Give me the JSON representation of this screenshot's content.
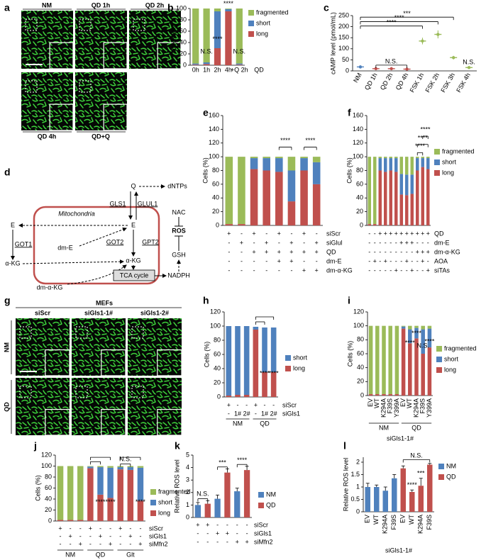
{
  "panel_labels": [
    "a",
    "b",
    "c",
    "d",
    "e",
    "f",
    "g",
    "h",
    "i",
    "j",
    "k",
    "l"
  ],
  "figure_a": {
    "images": [
      "NM",
      "QD 1h",
      "QD 2h",
      "QD 4h",
      "QD+Q"
    ]
  },
  "diagram_d": {
    "nodes": [
      "Q",
      "dNTPs",
      "GLS1",
      "GLUL1",
      "Mitochondria",
      "E",
      "E",
      "GOT1",
      "dm-E",
      "α-KG",
      "α-KG",
      "GOT2",
      "GPT2",
      "dm-α-KG",
      "TCA cycle",
      "NADPH",
      "GSH",
      "ROS",
      "NAC"
    ]
  },
  "figure_g": {
    "header": "MEFs",
    "columns": [
      "siScr",
      "siGls1-1#",
      "siGls1-2#"
    ],
    "rows": [
      "NM",
      "QD"
    ]
  },
  "chart_data": [
    {
      "type": "stacked_bar",
      "ylabel": "Cells (%)",
      "xlabel": "QD",
      "categories": [
        "0h",
        "1h",
        "2h",
        "4h",
        "+Q 2h"
      ],
      "ylim": [
        0,
        100
      ],
      "yticks": [
        0,
        20,
        40,
        60,
        80,
        100
      ],
      "series": [
        {
          "name": "fragmented",
          "color": "#9bbb59",
          "values": [
            97,
            95,
            5,
            1,
            97
          ]
        },
        {
          "name": "short",
          "color": "#4f81bd",
          "values": [
            2,
            3,
            65,
            4,
            2
          ]
        },
        {
          "name": "long",
          "color": "#c0504d",
          "values": [
            1,
            2,
            30,
            95,
            1
          ]
        }
      ],
      "annotations": [
        "N.S.",
        "****",
        "****",
        "N.S."
      ]
    },
    {
      "type": "dot",
      "ylabel": "cAMP level (pmol/mL)",
      "categories": [
        "NM",
        "QD 1h",
        "QD 2h",
        "QD 4h",
        "FSK 1h",
        "FSK 2h",
        "FSK 3h",
        "FSK 4h"
      ],
      "values": [
        18,
        10,
        10,
        8,
        135,
        165,
        60,
        15
      ],
      "errors": [
        3,
        2,
        2,
        2,
        15,
        18,
        8,
        3
      ],
      "colors": [
        "#4f81bd",
        "#c0504d",
        "#c0504d",
        "#c0504d",
        "#9bbb59",
        "#9bbb59",
        "#9bbb59",
        "#9bbb59"
      ],
      "ylim": [
        0,
        250
      ],
      "yticks": [
        0,
        50,
        100,
        150,
        200,
        250
      ],
      "annotations": [
        "***",
        "****",
        "****",
        "N.S.",
        "N.S."
      ]
    },
    {
      "type": "stacked_bar",
      "ylabel": "Cells (%)",
      "ylim": [
        0,
        160
      ],
      "yticks": [
        0,
        20,
        40,
        60,
        80,
        100,
        120,
        140,
        160
      ],
      "series": [
        {
          "name": "fragmented",
          "color": "#9bbb59",
          "values": [
            98,
            98,
            2,
            2,
            2,
            20,
            2,
            8
          ]
        },
        {
          "name": "short",
          "color": "#4f81bd",
          "values": [
            0,
            0,
            16,
            18,
            20,
            45,
            18,
            32
          ]
        },
        {
          "name": "long",
          "color": "#c0504d",
          "values": [
            2,
            2,
            82,
            80,
            78,
            35,
            80,
            60
          ]
        }
      ],
      "conditions": [
        {
          "name": "siScr",
          "values": [
            "+",
            "-",
            "+",
            "-",
            "+",
            "-",
            "+",
            "-"
          ]
        },
        {
          "name": "siGlul",
          "values": [
            "-",
            "+",
            "-",
            "+",
            "-",
            "+",
            "-",
            "+"
          ]
        },
        {
          "name": "QD",
          "values": [
            "-",
            "-",
            "+",
            "+",
            "+",
            "+",
            "+",
            "+"
          ]
        },
        {
          "name": "dm-E",
          "values": [
            "-",
            "-",
            "-",
            "-",
            "+",
            "+",
            "-",
            "-"
          ]
        },
        {
          "name": "dm-α-KG",
          "values": [
            "-",
            "-",
            "-",
            "-",
            "-",
            "-",
            "+",
            "+"
          ]
        }
      ],
      "annotations": [
        "****",
        "****"
      ]
    },
    {
      "type": "stacked_bar",
      "ylabel": "Cells (%)",
      "ylim": [
        0,
        160
      ],
      "yticks": [
        0,
        20,
        40,
        60,
        80,
        100,
        120,
        140,
        160
      ],
      "series": [
        {
          "name": "fragmented",
          "color": "#9bbb59",
          "values": [
            98,
            98,
            2,
            2,
            2,
            2,
            25,
            26,
            26,
            2,
            2,
            2
          ]
        },
        {
          "name": "short",
          "color": "#4f81bd",
          "values": [
            0,
            0,
            18,
            20,
            18,
            20,
            30,
            30,
            28,
            18,
            13,
            16
          ]
        },
        {
          "name": "long",
          "color": "#c0504d",
          "values": [
            2,
            2,
            80,
            78,
            80,
            78,
            45,
            44,
            46,
            80,
            85,
            82
          ]
        }
      ],
      "conditions": [
        {
          "name": "QD",
          "values": [
            "-",
            "-",
            "+",
            "+",
            "+",
            "+",
            "+",
            "+",
            "+",
            "+",
            "+",
            "+"
          ]
        },
        {
          "name": "dm-E",
          "values": [
            "-",
            "-",
            "-",
            "-",
            "-",
            "-",
            "+",
            "+",
            "+",
            "-",
            "-",
            "-"
          ]
        },
        {
          "name": "dm-α-KG",
          "values": [
            "-",
            "-",
            "-",
            "-",
            "-",
            "-",
            "-",
            "-",
            "-",
            "+",
            "+",
            "+"
          ]
        },
        {
          "name": "AOA",
          "values": [
            "-",
            "+",
            "-",
            "+",
            "-",
            "-",
            "-",
            "+",
            "-",
            "-",
            "+",
            "-"
          ]
        },
        {
          "name": "siTAs",
          "values": [
            "-",
            "-",
            "-",
            "-",
            "-",
            "+",
            "-",
            "-",
            "+",
            "-",
            "-",
            "+"
          ]
        }
      ],
      "annotations": [
        "****",
        "****",
        "****"
      ]
    },
    {
      "type": "stacked_bar",
      "ylabel": "Cells (%)",
      "ylim": [
        0,
        120
      ],
      "yticks": [
        0,
        20,
        40,
        60,
        80,
        100,
        120
      ],
      "series": [
        {
          "name": "short",
          "color": "#4f81bd",
          "values": [
            98,
            97,
            97,
            4,
            63,
            63
          ]
        },
        {
          "name": "long",
          "color": "#c0504d",
          "values": [
            2,
            3,
            3,
            95,
            35,
            35
          ]
        }
      ],
      "conditions": [
        {
          "name": "siScr",
          "values": [
            "+",
            "-",
            "-",
            "+",
            "-",
            "-"
          ]
        },
        {
          "name": "siGls1",
          "values": [
            "-",
            "1#",
            "2#",
            "-",
            "1#",
            "2#"
          ]
        }
      ],
      "groups": [
        "NM",
        "QD"
      ],
      "annotations": [
        "****",
        "****"
      ]
    },
    {
      "type": "stacked_bar",
      "ylabel": "Cells (%)",
      "xlabel": "siGls1-1#",
      "categories": [
        "EV",
        "WT",
        "K294A",
        "F39S",
        "Y399A",
        "EV",
        "WT",
        "K294A",
        "F39S",
        "Y399A"
      ],
      "ylim": [
        0,
        120
      ],
      "yticks": [
        0,
        20,
        40,
        60,
        80,
        100,
        120
      ],
      "series": [
        {
          "name": "fragmented",
          "color": "#9bbb59",
          "values": [
            98,
            98,
            98,
            98,
            98,
            1,
            5,
            3,
            5,
            4
          ]
        },
        {
          "name": "short",
          "color": "#4f81bd",
          "values": [
            0,
            0,
            0,
            0,
            0,
            3,
            20,
            15,
            35,
            27
          ]
        },
        {
          "name": "long",
          "color": "#c0504d",
          "values": [
            2,
            2,
            2,
            2,
            2,
            96,
            75,
            82,
            60,
            69
          ]
        }
      ],
      "groups": [
        "NM",
        "QD"
      ],
      "annotations": [
        "****",
        "****",
        "N.S.",
        "****"
      ]
    },
    {
      "type": "stacked_bar",
      "ylabel": "Cells (%)",
      "ylim": [
        0,
        120
      ],
      "yticks": [
        0,
        20,
        40,
        60,
        80,
        100,
        120
      ],
      "series": [
        {
          "name": "fragmented",
          "color": "#9bbb59",
          "values": [
            98,
            98,
            98,
            1,
            2,
            3,
            2,
            2,
            3
          ]
        },
        {
          "name": "short",
          "color": "#4f81bd",
          "values": [
            0,
            0,
            0,
            3,
            50,
            55,
            4,
            5,
            60
          ]
        },
        {
          "name": "long",
          "color": "#c0504d",
          "values": [
            2,
            2,
            2,
            96,
            48,
            42,
            94,
            93,
            37
          ]
        }
      ],
      "conditions": [
        {
          "name": "siScr",
          "values": [
            "+",
            "-",
            "-",
            "+",
            "-",
            "-",
            "+",
            "-",
            "-"
          ]
        },
        {
          "name": "siGls1",
          "values": [
            "-",
            "+",
            "-",
            "-",
            "+",
            "-",
            "-",
            "+",
            "-"
          ]
        },
        {
          "name": "siMfn2",
          "values": [
            "-",
            "-",
            "+",
            "-",
            "-",
            "+",
            "-",
            "-",
            "+"
          ]
        }
      ],
      "groups": [
        "NM",
        "QD",
        "Glt"
      ],
      "annotations": [
        "****",
        "****",
        "N.S.",
        "****"
      ]
    },
    {
      "type": "grouped_bar",
      "ylabel": "Relative ROS level",
      "ylim": [
        0,
        5
      ],
      "yticks": [
        0,
        1,
        2,
        3,
        4,
        5
      ],
      "series": [
        {
          "name": "NM",
          "color": "#4f81bd",
          "values": [
            1.0,
            1.5,
            2.1
          ],
          "errors": [
            0.2,
            0.3,
            0.25
          ]
        },
        {
          "name": "QD",
          "color": "#c0504d",
          "values": [
            1.1,
            3.6,
            3.8
          ],
          "errors": [
            0.25,
            0.3,
            0.3
          ]
        }
      ],
      "conditions": [
        {
          "name": "siScr",
          "values": [
            "+",
            "+",
            "-",
            "-",
            "-",
            "-"
          ]
        },
        {
          "name": "siGls1",
          "values": [
            "-",
            "-",
            "+",
            "+",
            "-",
            "-"
          ]
        },
        {
          "name": "siMfn2",
          "values": [
            "-",
            "-",
            "-",
            "-",
            "+",
            "+"
          ]
        }
      ],
      "annotations": [
        "N.S.",
        "***",
        "****"
      ]
    },
    {
      "type": "bar",
      "ylabel": "Relative ROS level",
      "xlabel": "siGls1-1#",
      "categories": [
        "EV",
        "WT",
        "K294A",
        "F39S",
        "EV",
        "WT",
        "K294A",
        "F39S"
      ],
      "ylim": [
        0,
        2.2
      ],
      "yticks": [
        0,
        0.5,
        1,
        1.5,
        2
      ],
      "series": [
        {
          "name": "NM",
          "color": "#4f81bd",
          "values": [
            1.0,
            1.0,
            0.85,
            1.35,
            null,
            null,
            null,
            null
          ],
          "errors": [
            0.15,
            0.08,
            0.15,
            0.15,
            null,
            null,
            null,
            null
          ]
        },
        {
          "name": "QD",
          "color": "#c0504d",
          "values": [
            null,
            null,
            null,
            null,
            1.75,
            0.8,
            1.05,
            1.9
          ],
          "errors": [
            null,
            null,
            null,
            null,
            0.1,
            0.08,
            0.3,
            0.05
          ]
        }
      ],
      "annotations": [
        "****",
        "***",
        "N.S."
      ]
    }
  ]
}
